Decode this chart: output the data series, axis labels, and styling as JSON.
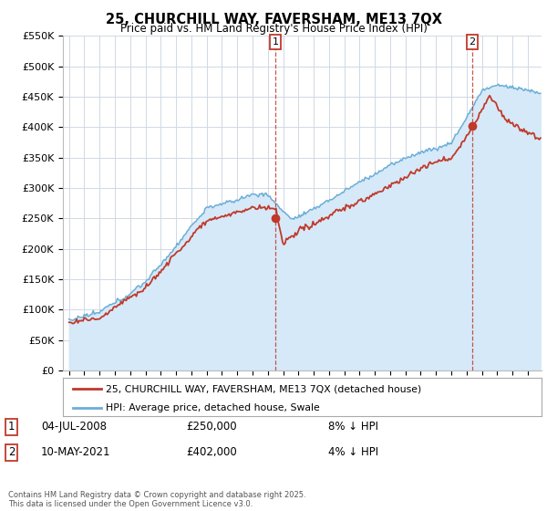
{
  "title": "25, CHURCHILL WAY, FAVERSHAM, ME13 7QX",
  "subtitle": "Price paid vs. HM Land Registry's House Price Index (HPI)",
  "legend_line1": "25, CHURCHILL WAY, FAVERSHAM, ME13 7QX (detached house)",
  "legend_line2": "HPI: Average price, detached house, Swale",
  "annotation1": {
    "num": "1",
    "date": "04-JUL-2008",
    "price": "£250,000",
    "note": "8% ↓ HPI"
  },
  "annotation2": {
    "num": "2",
    "date": "10-MAY-2021",
    "price": "£402,000",
    "note": "4% ↓ HPI"
  },
  "footnote": "Contains HM Land Registry data © Crown copyright and database right 2025.\nThis data is licensed under the Open Government Licence v3.0.",
  "hpi_color": "#6baed6",
  "hpi_fill_color": "#d6e9f8",
  "price_color": "#c0392b",
  "annotation_color": "#c0392b",
  "vline_color": "#c0392b",
  "background_color": "#ffffff",
  "grid_color": "#d0d8e4",
  "ylim": [
    0,
    550000
  ],
  "yticks": [
    0,
    50000,
    100000,
    150000,
    200000,
    250000,
    300000,
    350000,
    400000,
    450000,
    500000,
    550000
  ],
  "ytick_labels": [
    "£0",
    "£50K",
    "£100K",
    "£150K",
    "£200K",
    "£250K",
    "£300K",
    "£350K",
    "£400K",
    "£450K",
    "£500K",
    "£550K"
  ],
  "year_start": 1995,
  "year_end": 2025,
  "marker1_year": 2008.5,
  "marker2_year": 2021.37,
  "purchase1_value": 250000,
  "purchase2_value": 402000
}
